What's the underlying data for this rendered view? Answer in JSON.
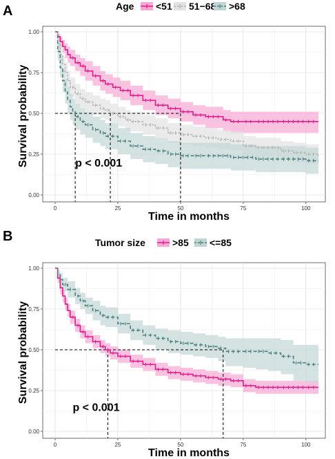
{
  "chart_data": [
    {
      "panel": "A",
      "type": "line",
      "subtype": "kaplan-meier",
      "legend_title": "Age",
      "legend_placement": "top",
      "xlabel": "Time in months",
      "ylabel": "Survival probability",
      "xlim": [
        0,
        105
      ],
      "ylim": [
        0,
        1
      ],
      "x_ticks": [
        0,
        25,
        50,
        75,
        100
      ],
      "y_ticks": [
        0.0,
        0.25,
        0.5,
        0.75,
        1.0
      ],
      "x_tick_labels": [
        "0",
        "25",
        "50",
        "75",
        "100"
      ],
      "y_tick_labels": [
        "0.00",
        "0.25",
        "0.50",
        "0.75",
        "1.00"
      ],
      "grid": true,
      "annotation": "p < 0.001",
      "annotation_pos": [
        8,
        0.2
      ],
      "median_lines": [
        {
          "x": 8,
          "y": 0.5
        },
        {
          "x": 22,
          "y": 0.5
        },
        {
          "x": 50,
          "y": 0.5
        }
      ],
      "series": [
        {
          "name": "<51",
          "color": "#e31a8a",
          "band": "#f7a8d4",
          "dash": "solid",
          "x": [
            0,
            1,
            2,
            3,
            4,
            5,
            6,
            8,
            10,
            12,
            15,
            18,
            20,
            23,
            26,
            30,
            35,
            40,
            45,
            50,
            55,
            60,
            67,
            70,
            75,
            80,
            90,
            100,
            105
          ],
          "y": [
            1.0,
            0.97,
            0.94,
            0.91,
            0.89,
            0.86,
            0.84,
            0.81,
            0.79,
            0.76,
            0.73,
            0.7,
            0.68,
            0.66,
            0.64,
            0.61,
            0.58,
            0.55,
            0.53,
            0.51,
            0.49,
            0.48,
            0.46,
            0.45,
            0.45,
            0.45,
            0.45,
            0.45,
            0.45
          ],
          "lower": [
            1.0,
            0.94,
            0.9,
            0.87,
            0.84,
            0.81,
            0.79,
            0.76,
            0.73,
            0.7,
            0.67,
            0.64,
            0.62,
            0.6,
            0.58,
            0.55,
            0.52,
            0.49,
            0.47,
            0.45,
            0.43,
            0.41,
            0.39,
            0.38,
            0.38,
            0.38,
            0.38,
            0.38,
            0.38
          ],
          "upper": [
            1.0,
            0.99,
            0.97,
            0.95,
            0.93,
            0.91,
            0.89,
            0.86,
            0.84,
            0.82,
            0.79,
            0.76,
            0.74,
            0.72,
            0.7,
            0.67,
            0.64,
            0.61,
            0.59,
            0.57,
            0.55,
            0.54,
            0.52,
            0.51,
            0.51,
            0.51,
            0.51,
            0.51,
            0.51
          ]
        },
        {
          "name": "51−68",
          "color": "#b5b5b5",
          "band": "#e2e2e2",
          "dash": "3,2",
          "x": [
            0,
            1,
            2,
            3,
            4,
            5,
            6,
            8,
            10,
            12,
            15,
            18,
            20,
            22,
            25,
            28,
            30,
            35,
            40,
            45,
            50,
            55,
            60,
            65,
            70,
            75,
            80,
            90,
            95,
            100,
            105
          ],
          "y": [
            1.0,
            0.93,
            0.86,
            0.8,
            0.75,
            0.7,
            0.66,
            0.62,
            0.59,
            0.57,
            0.55,
            0.53,
            0.52,
            0.5,
            0.48,
            0.46,
            0.45,
            0.43,
            0.41,
            0.38,
            0.37,
            0.36,
            0.35,
            0.34,
            0.33,
            0.3,
            0.29,
            0.27,
            0.26,
            0.25,
            0.24
          ],
          "lower": [
            1.0,
            0.89,
            0.81,
            0.75,
            0.69,
            0.64,
            0.6,
            0.56,
            0.53,
            0.51,
            0.49,
            0.47,
            0.46,
            0.44,
            0.42,
            0.4,
            0.39,
            0.37,
            0.35,
            0.32,
            0.31,
            0.3,
            0.29,
            0.28,
            0.27,
            0.24,
            0.23,
            0.21,
            0.2,
            0.19,
            0.18
          ],
          "upper": [
            1.0,
            0.96,
            0.91,
            0.85,
            0.81,
            0.76,
            0.72,
            0.68,
            0.65,
            0.63,
            0.61,
            0.59,
            0.58,
            0.56,
            0.54,
            0.52,
            0.51,
            0.49,
            0.47,
            0.44,
            0.43,
            0.42,
            0.41,
            0.4,
            0.39,
            0.36,
            0.35,
            0.33,
            0.32,
            0.31,
            0.3
          ]
        },
        {
          "name": ">68",
          "color": "#4a7f7f",
          "band": "#c2d5d5",
          "dash": "5,3",
          "x": [
            0,
            1,
            2,
            3,
            4,
            5,
            6,
            7,
            8,
            10,
            12,
            15,
            18,
            20,
            25,
            30,
            35,
            40,
            45,
            50,
            55,
            60,
            70,
            80,
            90,
            100,
            105
          ],
          "y": [
            1.0,
            0.88,
            0.78,
            0.7,
            0.63,
            0.58,
            0.54,
            0.51,
            0.48,
            0.45,
            0.43,
            0.4,
            0.38,
            0.36,
            0.33,
            0.3,
            0.28,
            0.27,
            0.25,
            0.24,
            0.24,
            0.24,
            0.23,
            0.22,
            0.22,
            0.21,
            0.21
          ],
          "lower": [
            1.0,
            0.83,
            0.72,
            0.63,
            0.56,
            0.5,
            0.46,
            0.43,
            0.4,
            0.37,
            0.35,
            0.32,
            0.3,
            0.28,
            0.25,
            0.22,
            0.2,
            0.19,
            0.17,
            0.16,
            0.16,
            0.16,
            0.15,
            0.14,
            0.14,
            0.13,
            0.13
          ],
          "upper": [
            1.0,
            0.93,
            0.85,
            0.77,
            0.71,
            0.66,
            0.62,
            0.59,
            0.56,
            0.53,
            0.51,
            0.48,
            0.46,
            0.44,
            0.41,
            0.38,
            0.36,
            0.35,
            0.33,
            0.32,
            0.32,
            0.32,
            0.31,
            0.3,
            0.3,
            0.29,
            0.29
          ]
        }
      ]
    },
    {
      "panel": "B",
      "type": "line",
      "subtype": "kaplan-meier",
      "legend_title": "Tumor size",
      "legend_placement": "top",
      "xlabel": "Time in months",
      "ylabel": "Survival probability",
      "xlim": [
        0,
        105
      ],
      "ylim": [
        0,
        1
      ],
      "x_ticks": [
        0,
        25,
        50,
        75,
        100
      ],
      "y_ticks": [
        0.0,
        0.25,
        0.5,
        0.75,
        1.0
      ],
      "x_tick_labels": [
        "0",
        "25",
        "50",
        "75",
        "100"
      ],
      "y_tick_labels": [
        "0.00",
        "0.25",
        "0.50",
        "0.75",
        "1.00"
      ],
      "grid": true,
      "annotation": "p < 0.001",
      "annotation_pos": [
        7,
        0.15
      ],
      "median_lines": [
        {
          "x": 21,
          "y": 0.5
        },
        {
          "x": 67,
          "y": 0.5
        }
      ],
      "series": [
        {
          "name": ">85",
          "color": "#e31a8a",
          "band": "#f7a8d4",
          "dash": "solid",
          "x": [
            0,
            1,
            2,
            3,
            4,
            5,
            6,
            8,
            10,
            12,
            15,
            18,
            20,
            22,
            25,
            30,
            35,
            40,
            45,
            50,
            55,
            60,
            65,
            70,
            75,
            80,
            90,
            100,
            105
          ],
          "y": [
            1.0,
            0.94,
            0.88,
            0.83,
            0.78,
            0.74,
            0.7,
            0.65,
            0.61,
            0.58,
            0.55,
            0.52,
            0.5,
            0.48,
            0.46,
            0.43,
            0.41,
            0.38,
            0.36,
            0.35,
            0.34,
            0.33,
            0.32,
            0.31,
            0.28,
            0.27,
            0.27,
            0.27,
            0.27
          ],
          "lower": [
            1.0,
            0.91,
            0.84,
            0.79,
            0.74,
            0.7,
            0.66,
            0.61,
            0.57,
            0.54,
            0.51,
            0.48,
            0.46,
            0.44,
            0.42,
            0.39,
            0.37,
            0.34,
            0.32,
            0.31,
            0.3,
            0.29,
            0.28,
            0.27,
            0.24,
            0.23,
            0.23,
            0.23,
            0.23
          ],
          "upper": [
            1.0,
            0.97,
            0.92,
            0.87,
            0.82,
            0.78,
            0.74,
            0.69,
            0.65,
            0.62,
            0.59,
            0.56,
            0.54,
            0.52,
            0.5,
            0.47,
            0.45,
            0.42,
            0.4,
            0.39,
            0.38,
            0.37,
            0.36,
            0.35,
            0.32,
            0.31,
            0.31,
            0.31,
            0.31
          ]
        },
        {
          "name": "<=85",
          "color": "#4a7f7f",
          "band": "#c2d5d5",
          "dash": "5,3",
          "x": [
            0,
            1,
            2,
            3,
            5,
            8,
            10,
            12,
            15,
            18,
            20,
            25,
            30,
            35,
            40,
            45,
            50,
            55,
            60,
            65,
            68,
            75,
            80,
            85,
            90,
            95,
            100,
            105
          ],
          "y": [
            1.0,
            0.96,
            0.93,
            0.9,
            0.87,
            0.83,
            0.8,
            0.77,
            0.74,
            0.71,
            0.7,
            0.66,
            0.62,
            0.59,
            0.57,
            0.55,
            0.54,
            0.53,
            0.52,
            0.51,
            0.49,
            0.49,
            0.49,
            0.48,
            0.46,
            0.42,
            0.41,
            0.41
          ],
          "lower": [
            1.0,
            0.93,
            0.89,
            0.86,
            0.82,
            0.78,
            0.75,
            0.72,
            0.68,
            0.65,
            0.64,
            0.6,
            0.56,
            0.53,
            0.5,
            0.48,
            0.47,
            0.46,
            0.45,
            0.43,
            0.4,
            0.39,
            0.38,
            0.37,
            0.35,
            0.31,
            0.3,
            0.3
          ],
          "upper": [
            1.0,
            0.99,
            0.97,
            0.94,
            0.92,
            0.88,
            0.85,
            0.82,
            0.8,
            0.77,
            0.76,
            0.72,
            0.68,
            0.65,
            0.63,
            0.62,
            0.61,
            0.6,
            0.59,
            0.58,
            0.57,
            0.57,
            0.57,
            0.57,
            0.56,
            0.53,
            0.53,
            0.53
          ]
        }
      ]
    }
  ],
  "panels": [
    {
      "letter": "A"
    },
    {
      "letter": "B"
    }
  ]
}
